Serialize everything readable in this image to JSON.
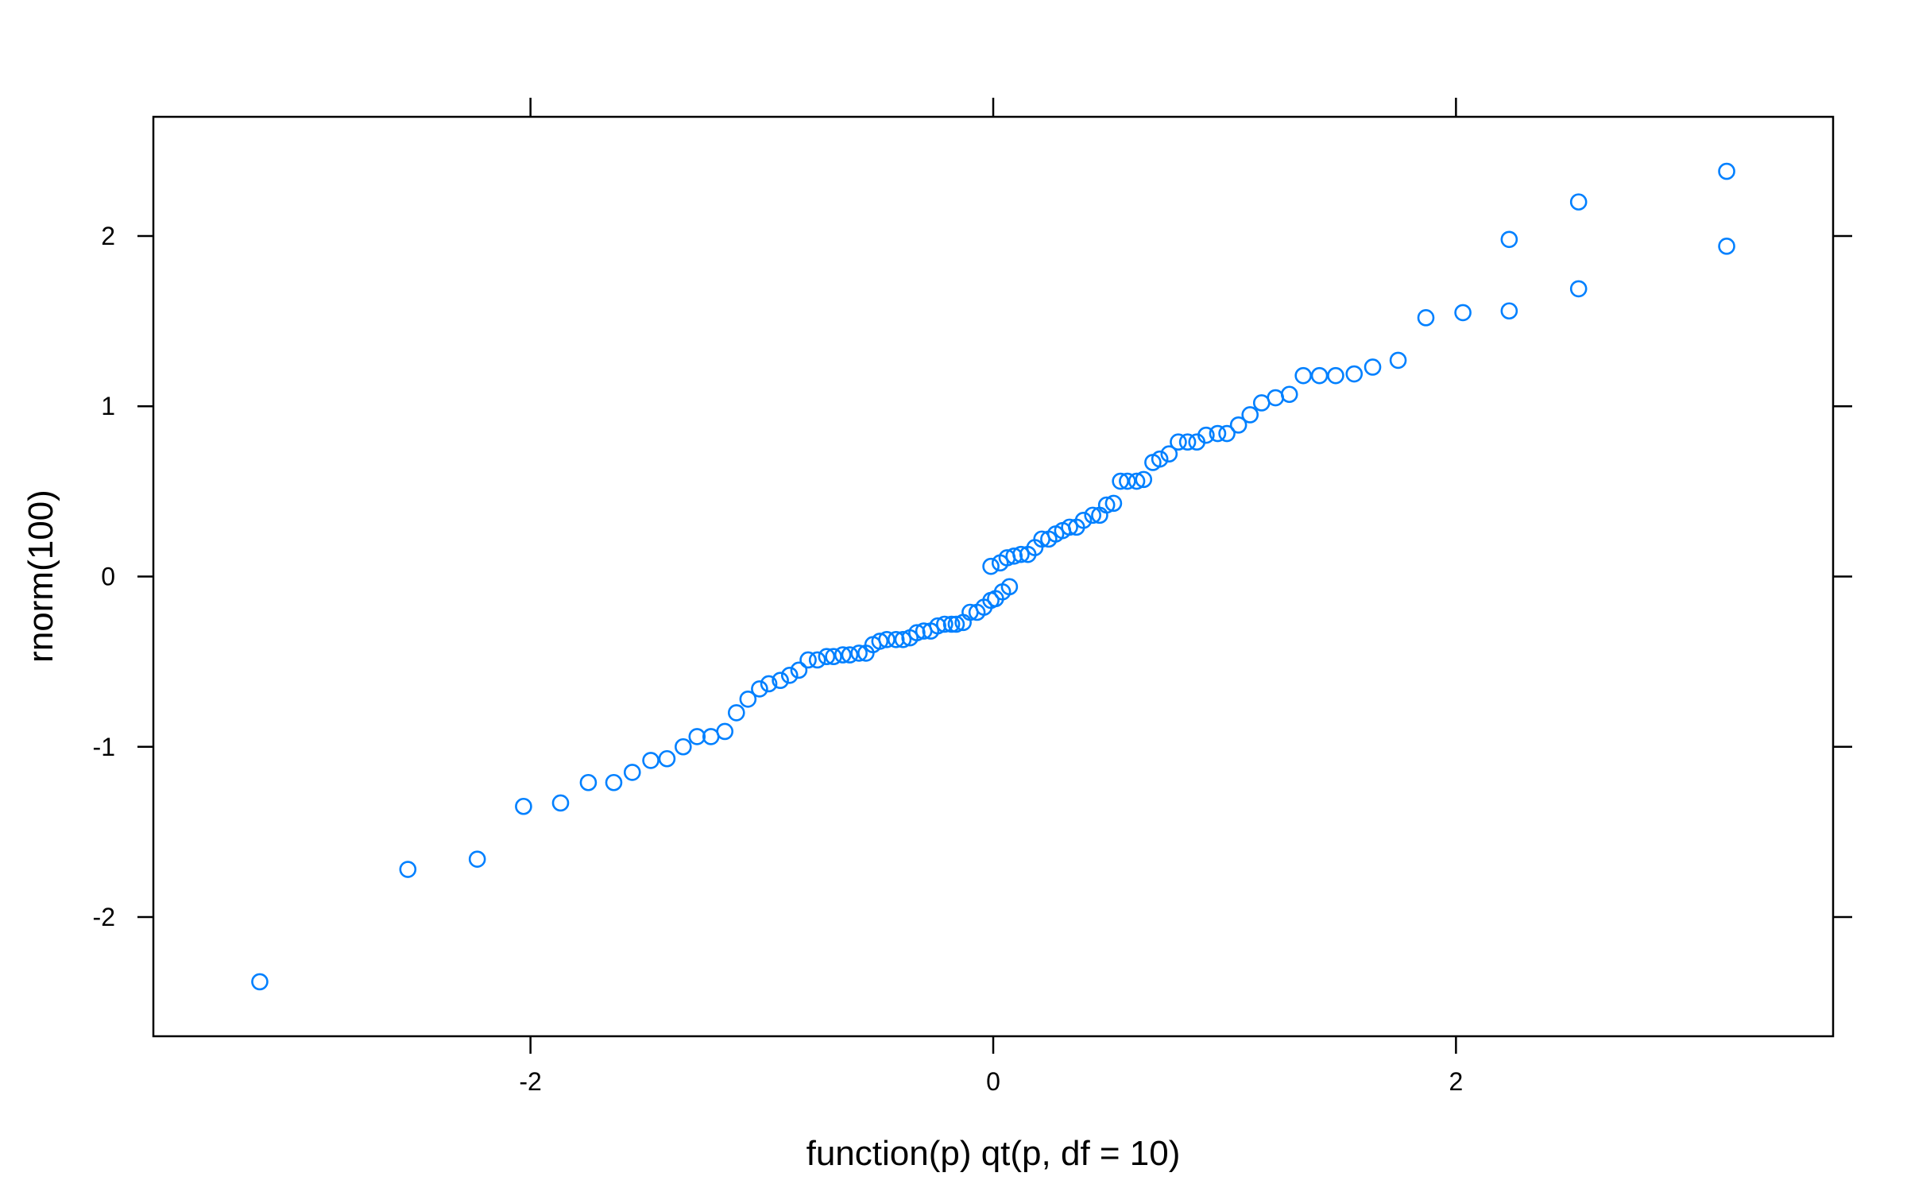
{
  "chart_data": {
    "type": "scatter",
    "title": "",
    "xlabel": "function(p) qt(p, df = 10)",
    "ylabel": "rnorm(100)",
    "xlim": [
      -3.63,
      3.63
    ],
    "ylim": [
      -2.7,
      2.7
    ],
    "x_ticks": [
      -2,
      0,
      2
    ],
    "x_tick_labels": [
      "-2",
      "0",
      "2"
    ],
    "y_ticks": [
      -2,
      -1,
      0,
      1,
      2
    ],
    "y_tick_labels": [
      "-2",
      "-1",
      "0",
      "1",
      "2"
    ],
    "grid": false,
    "marker": "open-circle",
    "marker_color": "#0080ff",
    "axis_color": "#000000",
    "series": [
      {
        "points": [
          [
            -3.17,
            -2.38
          ],
          [
            -2.53,
            -1.72
          ],
          [
            -2.23,
            -1.66
          ],
          [
            -2.03,
            -1.35
          ],
          [
            -1.87,
            -1.33
          ],
          [
            -1.75,
            -1.21
          ],
          [
            -1.64,
            -1.21
          ],
          [
            -1.56,
            -1.15
          ],
          [
            -1.48,
            -1.08
          ],
          [
            -1.41,
            -1.07
          ],
          [
            -1.34,
            -1.0
          ],
          [
            -1.28,
            -0.94
          ],
          [
            -1.22,
            -0.94
          ],
          [
            -1.16,
            -0.91
          ],
          [
            -1.11,
            -0.8
          ],
          [
            -1.06,
            -0.72
          ],
          [
            -1.01,
            -0.66
          ],
          [
            -0.97,
            -0.63
          ],
          [
            -0.92,
            -0.61
          ],
          [
            -0.88,
            -0.58
          ],
          [
            -0.84,
            -0.55
          ],
          [
            -0.8,
            -0.49
          ],
          [
            -0.76,
            -0.49
          ],
          [
            -0.72,
            -0.47
          ],
          [
            -0.69,
            -0.47
          ],
          [
            -0.65,
            -0.46
          ],
          [
            -0.62,
            -0.46
          ],
          [
            -0.58,
            -0.45
          ],
          [
            -0.55,
            -0.45
          ],
          [
            -0.52,
            -0.4
          ],
          [
            -0.49,
            -0.38
          ],
          [
            -0.46,
            -0.37
          ],
          [
            -0.42,
            -0.37
          ],
          [
            -0.39,
            -0.37
          ],
          [
            -0.36,
            -0.36
          ],
          [
            -0.33,
            -0.33
          ],
          [
            -0.3,
            -0.32
          ],
          [
            -0.27,
            -0.32
          ],
          [
            -0.24,
            -0.29
          ],
          [
            -0.21,
            -0.28
          ],
          [
            -0.18,
            -0.28
          ],
          [
            -0.16,
            -0.28
          ],
          [
            -0.13,
            -0.27
          ],
          [
            -0.1,
            -0.21
          ],
          [
            -0.07,
            -0.21
          ],
          [
            -0.04,
            -0.18
          ],
          [
            -0.01,
            -0.14
          ],
          [
            0.01,
            -0.13
          ],
          [
            0.04,
            -0.09
          ],
          [
            0.07,
            -0.06
          ],
          [
            -0.01,
            0.06
          ],
          [
            0.03,
            0.08
          ],
          [
            0.06,
            0.11
          ],
          [
            0.09,
            0.12
          ],
          [
            0.12,
            0.13
          ],
          [
            0.15,
            0.13
          ],
          [
            0.18,
            0.17
          ],
          [
            0.21,
            0.22
          ],
          [
            0.24,
            0.22
          ],
          [
            0.27,
            0.25
          ],
          [
            0.3,
            0.27
          ],
          [
            0.33,
            0.29
          ],
          [
            0.36,
            0.29
          ],
          [
            0.39,
            0.33
          ],
          [
            0.43,
            0.36
          ],
          [
            0.46,
            0.36
          ],
          [
            0.49,
            0.42
          ],
          [
            0.52,
            0.43
          ],
          [
            0.55,
            0.56
          ],
          [
            0.58,
            0.56
          ],
          [
            0.62,
            0.56
          ],
          [
            0.65,
            0.57
          ],
          [
            0.69,
            0.67
          ],
          [
            0.72,
            0.69
          ],
          [
            0.76,
            0.72
          ],
          [
            0.8,
            0.79
          ],
          [
            0.84,
            0.79
          ],
          [
            0.88,
            0.79
          ],
          [
            0.92,
            0.83
          ],
          [
            0.97,
            0.84
          ],
          [
            1.01,
            0.84
          ],
          [
            1.06,
            0.89
          ],
          [
            1.11,
            0.95
          ],
          [
            1.16,
            1.02
          ],
          [
            1.22,
            1.05
          ],
          [
            1.28,
            1.07
          ],
          [
            1.34,
            1.18
          ],
          [
            1.41,
            1.18
          ],
          [
            1.48,
            1.18
          ],
          [
            1.56,
            1.19
          ],
          [
            1.64,
            1.23
          ],
          [
            1.75,
            1.27
          ],
          [
            1.87,
            1.52
          ],
          [
            2.03,
            1.55
          ],
          [
            2.23,
            1.56
          ],
          [
            2.53,
            1.69
          ],
          [
            3.17,
            1.94
          ],
          [
            2.23,
            1.98
          ],
          [
            2.53,
            2.2
          ],
          [
            3.17,
            2.38
          ]
        ]
      }
    ]
  }
}
